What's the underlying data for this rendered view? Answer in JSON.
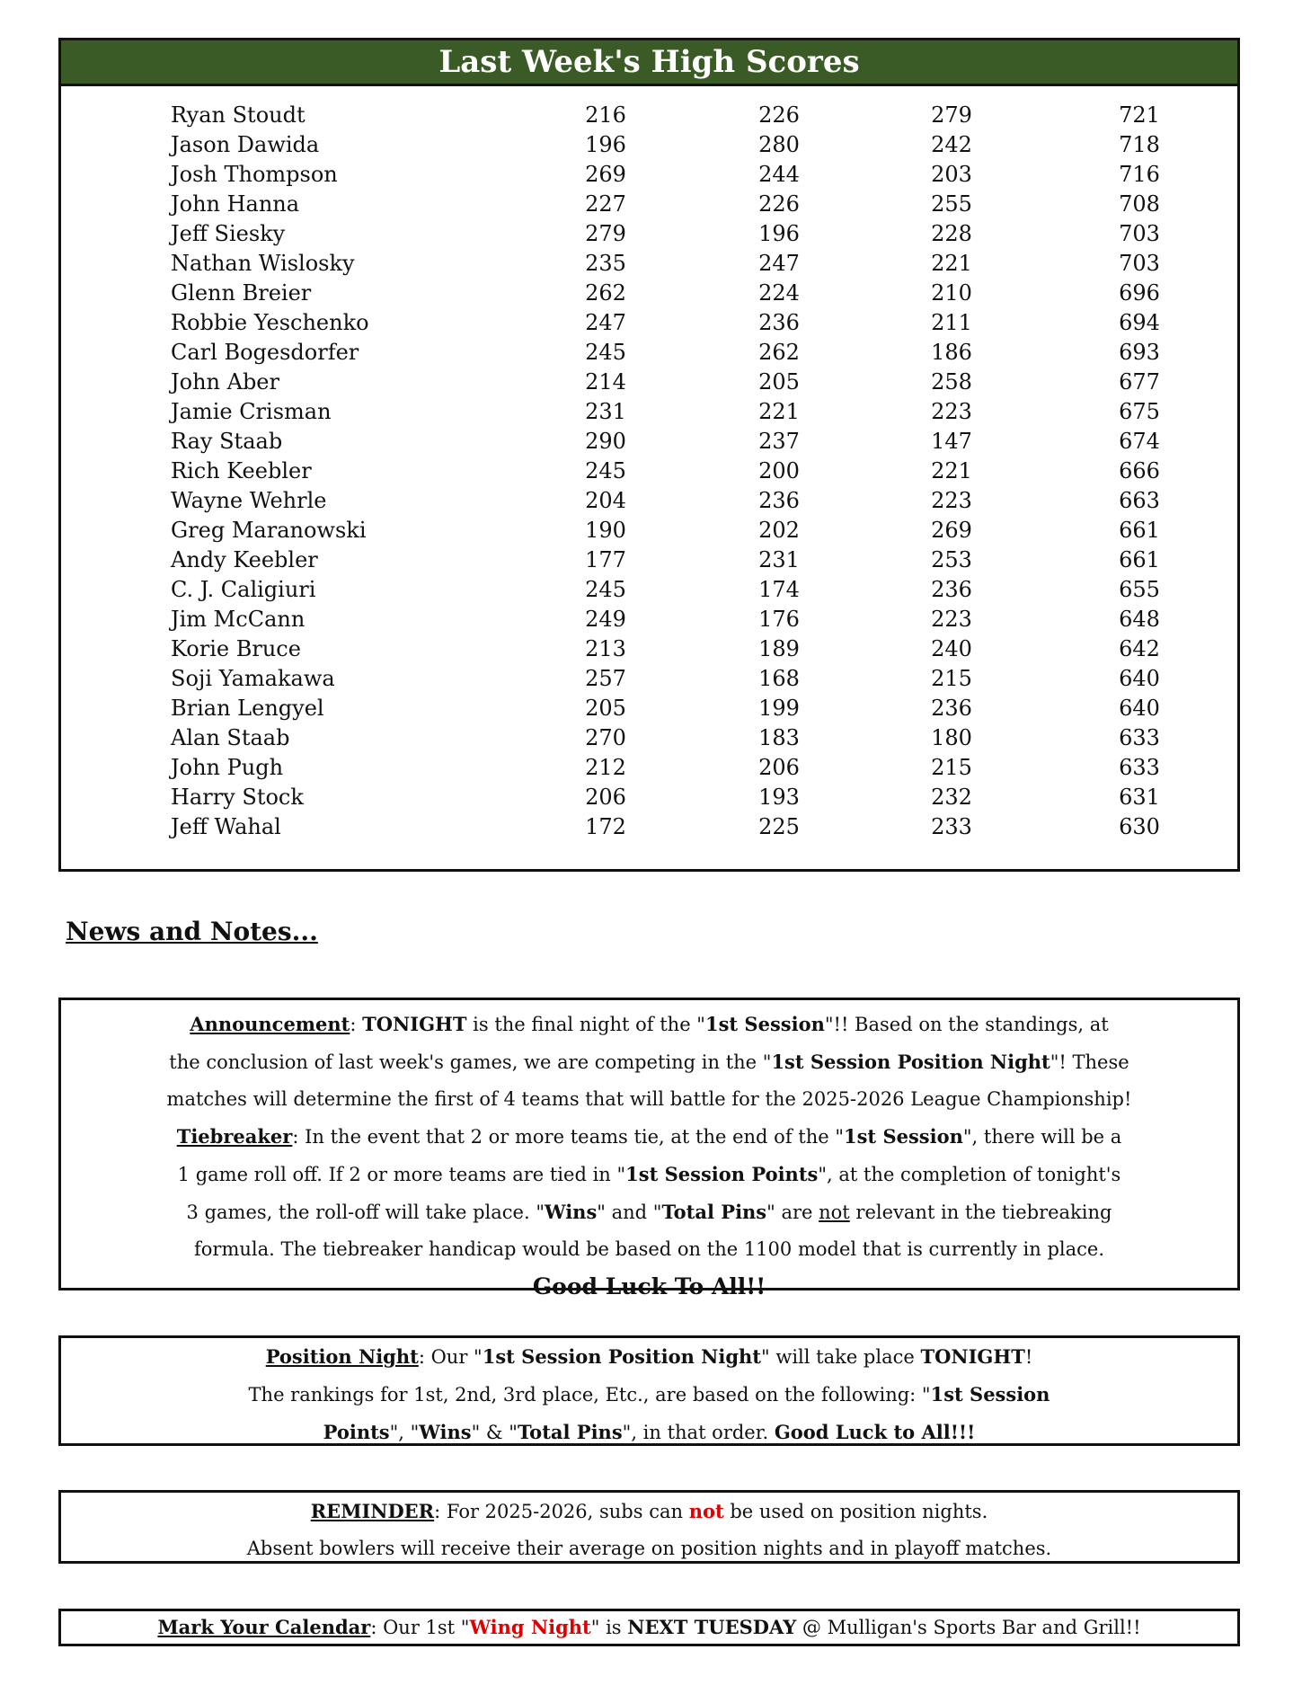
{
  "scores": {
    "title": "Last Week's High Scores",
    "rows": [
      [
        "Ryan Stoudt",
        "216",
        "226",
        "279",
        "721"
      ],
      [
        "Jason Dawida",
        "196",
        "280",
        "242",
        "718"
      ],
      [
        "Josh Thompson",
        "269",
        "244",
        "203",
        "716"
      ],
      [
        "John Hanna",
        "227",
        "226",
        "255",
        "708"
      ],
      [
        "Jeff Siesky",
        "279",
        "196",
        "228",
        "703"
      ],
      [
        "Nathan Wislosky",
        "235",
        "247",
        "221",
        "703"
      ],
      [
        "Glenn Breier",
        "262",
        "224",
        "210",
        "696"
      ],
      [
        "Robbie Yeschenko",
        "247",
        "236",
        "211",
        "694"
      ],
      [
        "Carl Bogesdorfer",
        "245",
        "262",
        "186",
        "693"
      ],
      [
        "John Aber",
        "214",
        "205",
        "258",
        "677"
      ],
      [
        "Jamie Crisman",
        "231",
        "221",
        "223",
        "675"
      ],
      [
        "Ray Staab",
        "290",
        "237",
        "147",
        "674"
      ],
      [
        "Rich Keebler",
        "245",
        "200",
        "221",
        "666"
      ],
      [
        "Wayne Wehrle",
        "204",
        "236",
        "223",
        "663"
      ],
      [
        "Greg Maranowski",
        "190",
        "202",
        "269",
        "661"
      ],
      [
        "Andy Keebler",
        "177",
        "231",
        "253",
        "661"
      ],
      [
        "C. J. Caligiuri",
        "245",
        "174",
        "236",
        "655"
      ],
      [
        "Jim McCann",
        "249",
        "176",
        "223",
        "648"
      ],
      [
        "Korie Bruce",
        "213",
        "189",
        "240",
        "642"
      ],
      [
        "Soji Yamakawa",
        "257",
        "168",
        "215",
        "640"
      ],
      [
        "Brian Lengyel",
        "205",
        "199",
        "236",
        "640"
      ],
      [
        "Alan Staab",
        "270",
        "183",
        "180",
        "633"
      ],
      [
        "John Pugh",
        "212",
        "206",
        "215",
        "633"
      ],
      [
        "Harry Stock",
        "206",
        "193",
        "232",
        "631"
      ],
      [
        "Jeff Wahal",
        "172",
        "225",
        "233",
        "630"
      ]
    ],
    "header_color": "#3a5a26"
  },
  "news_heading": "News and Notes...",
  "notes": [
    {
      "lines": [
        [
          {
            "t": "Announcement",
            "c": "b u"
          },
          {
            "t": ": "
          },
          {
            "t": "TONIGHT",
            "c": "b"
          },
          {
            "t": " is the final night of the \""
          },
          {
            "t": "1st Session",
            "c": "b"
          },
          {
            "t": "\"!!  Based on the standings, at"
          }
        ],
        [
          {
            "t": "the conclusion of last week's games, we are competing in the \""
          },
          {
            "t": "1st Session Position Night",
            "c": "b"
          },
          {
            "t": "\"!  These"
          }
        ],
        [
          {
            "t": "matches will determine the first of 4 teams that will battle for the 2025-2026 League Championship!"
          }
        ],
        [
          {
            "t": "Tiebreaker",
            "c": "b u"
          },
          {
            "t": ": In the event that 2 or more teams tie, at the end of the \""
          },
          {
            "t": "1st Session",
            "c": "b"
          },
          {
            "t": "\", there will be a"
          }
        ],
        [
          {
            "t": "1 game roll off.  If 2 or more teams are tied in \""
          },
          {
            "t": "1st Session Points",
            "c": "b"
          },
          {
            "t": "\", at the completion of tonight's"
          }
        ],
        [
          {
            "t": "3 games, the roll-off will take place.  \""
          },
          {
            "t": "Wins",
            "c": "b"
          },
          {
            "t": "\" and \""
          },
          {
            "t": "Total Pins",
            "c": "b"
          },
          {
            "t": "\" are "
          },
          {
            "t": "not",
            "c": "u"
          },
          {
            "t": " relevant in the tiebreaking"
          }
        ],
        [
          {
            "t": "formula.  The tiebreaker handicap would be based on the 1100 model that is currently in place."
          }
        ],
        [
          {
            "t": "Good Luck To All!!",
            "c": "big"
          }
        ]
      ]
    },
    {
      "lines": [
        [
          {
            "t": "Position Night",
            "c": "b u"
          },
          {
            "t": ": Our \""
          },
          {
            "t": "1st Session Position Night",
            "c": "b"
          },
          {
            "t": "\" will take place "
          },
          {
            "t": "TONIGHT",
            "c": "b"
          },
          {
            "t": "!"
          }
        ],
        [
          {
            "t": "The rankings for 1st, 2nd, 3rd place, Etc., are based on the following: \""
          },
          {
            "t": "1st Session",
            "c": "b"
          }
        ],
        [
          {
            "t": "Points",
            "c": "b"
          },
          {
            "t": "\", \""
          },
          {
            "t": "Wins",
            "c": "b"
          },
          {
            "t": "\" & \""
          },
          {
            "t": "Total Pins",
            "c": "b"
          },
          {
            "t": "\", in that order. "
          },
          {
            "t": "Good Luck to All!!!",
            "c": "b"
          }
        ]
      ]
    },
    {
      "lines": [
        [
          {
            "t": "REMINDER",
            "c": "b u"
          },
          {
            "t": ": For 2025-2026, subs can "
          },
          {
            "t": "not",
            "c": "b red"
          },
          {
            "t": " be used on position nights."
          }
        ],
        [
          {
            "t": "Absent bowlers will receive their average on position nights and in playoff matches."
          }
        ]
      ]
    },
    {
      "lines": [
        [
          {
            "t": "Mark Your Calendar",
            "c": "b u"
          },
          {
            "t": ": Our 1st \""
          },
          {
            "t": "Wing Night",
            "c": "b red"
          },
          {
            "t": "\" is "
          },
          {
            "t": "NEXT TUESDAY",
            "c": "b"
          },
          {
            "t": " @ Mulligan's Sports Bar and Grill!!"
          }
        ]
      ]
    }
  ],
  "accent_red": "#e00000"
}
